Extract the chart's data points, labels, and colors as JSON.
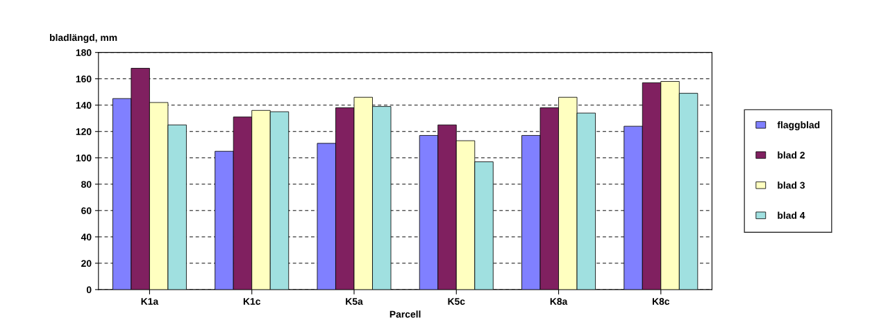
{
  "chart_data": {
    "type": "bar",
    "xlabel": "Parcell",
    "ylabel": "bladlängd, mm",
    "categories": [
      "K1a",
      "K1c",
      "K5a",
      "K5c",
      "K8a",
      "K8c"
    ],
    "series": [
      {
        "name": "flaggblad",
        "color": "#8080ff",
        "values": [
          145,
          105,
          111,
          117,
          117,
          124
        ]
      },
      {
        "name": "blad 2",
        "color": "#802060",
        "values": [
          168,
          131,
          138,
          125,
          138,
          157
        ]
      },
      {
        "name": "blad 3",
        "color": "#ffffc0",
        "values": [
          142,
          136,
          146,
          113,
          146,
          158
        ]
      },
      {
        "name": "blad 4",
        "color": "#a0e0e0",
        "values": [
          125,
          135,
          139,
          97,
          134,
          149
        ]
      }
    ],
    "ylim": [
      0,
      180
    ],
    "yticks": [
      0,
      20,
      40,
      60,
      80,
      100,
      120,
      140,
      160,
      180
    ],
    "grid": "y",
    "legend": "right"
  }
}
